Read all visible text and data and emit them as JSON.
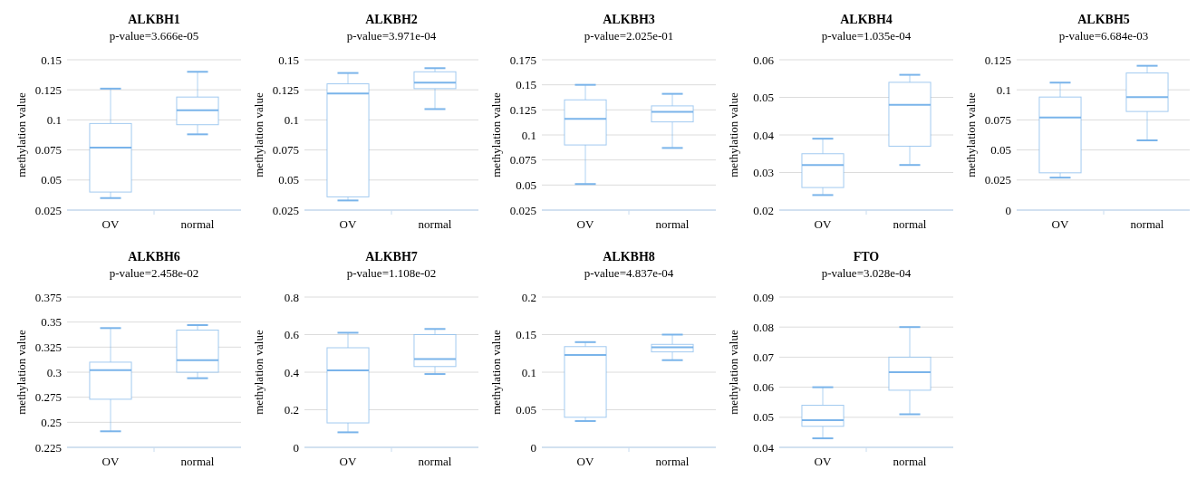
{
  "chart_data": [
    {
      "type": "box",
      "title": "ALKBH1",
      "subtitle": "p-value=3.666e-05",
      "ylabel": "methylation value",
      "categories": [
        "OV",
        "normal"
      ],
      "ylim": [
        0.025,
        0.15
      ],
      "yticks": [
        0.025,
        0.05,
        0.075,
        0.1,
        0.125,
        0.15
      ],
      "grid": "y",
      "series": [
        {
          "color": "#7ab4ea",
          "boxes": [
            {
              "low": 0.035,
              "q1": 0.04,
              "median": 0.077,
              "q3": 0.097,
              "high": 0.126
            },
            {
              "low": 0.088,
              "q1": 0.096,
              "median": 0.108,
              "q3": 0.119,
              "high": 0.14
            }
          ]
        }
      ]
    },
    {
      "type": "box",
      "title": "ALKBH2",
      "subtitle": "p-value=3.971e-04",
      "ylabel": "methylation value",
      "categories": [
        "OV",
        "normal"
      ],
      "ylim": [
        0.025,
        0.15
      ],
      "yticks": [
        0.025,
        0.05,
        0.075,
        0.1,
        0.125,
        0.15
      ],
      "grid": "y",
      "series": [
        {
          "color": "#7ab4ea",
          "boxes": [
            {
              "low": 0.033,
              "q1": 0.036,
              "median": 0.122,
              "q3": 0.13,
              "high": 0.139
            },
            {
              "low": 0.109,
              "q1": 0.126,
              "median": 0.131,
              "q3": 0.14,
              "high": 0.143
            }
          ]
        }
      ]
    },
    {
      "type": "box",
      "title": "ALKBH3",
      "subtitle": "p-value=2.025e-01",
      "ylabel": "methylation value",
      "categories": [
        "OV",
        "normal"
      ],
      "ylim": [
        0.025,
        0.175
      ],
      "yticks": [
        0.025,
        0.05,
        0.075,
        0.1,
        0.125,
        0.15,
        0.175
      ],
      "grid": "y",
      "series": [
        {
          "color": "#7ab4ea",
          "boxes": [
            {
              "low": 0.051,
              "q1": 0.09,
              "median": 0.116,
              "q3": 0.135,
              "high": 0.15
            },
            {
              "low": 0.087,
              "q1": 0.113,
              "median": 0.123,
              "q3": 0.129,
              "high": 0.141
            }
          ]
        }
      ]
    },
    {
      "type": "box",
      "title": "ALKBH4",
      "subtitle": "p-value=1.035e-04",
      "ylabel": "methylation value",
      "categories": [
        "OV",
        "normal"
      ],
      "ylim": [
        0.02,
        0.06
      ],
      "yticks": [
        0.02,
        0.03,
        0.04,
        0.05,
        0.06
      ],
      "grid": "y",
      "series": [
        {
          "color": "#7ab4ea",
          "boxes": [
            {
              "low": 0.024,
              "q1": 0.026,
              "median": 0.032,
              "q3": 0.035,
              "high": 0.039
            },
            {
              "low": 0.032,
              "q1": 0.037,
              "median": 0.048,
              "q3": 0.054,
              "high": 0.056
            }
          ]
        }
      ]
    },
    {
      "type": "box",
      "title": "ALKBH5",
      "subtitle": "p-value=6.684e-03",
      "ylabel": "methylation value",
      "categories": [
        "OV",
        "normal"
      ],
      "ylim": [
        0,
        0.125
      ],
      "yticks": [
        0,
        0.025,
        0.05,
        0.075,
        0.1,
        0.125
      ],
      "grid": "y",
      "series": [
        {
          "color": "#7ab4ea",
          "boxes": [
            {
              "low": 0.027,
              "q1": 0.031,
              "median": 0.077,
              "q3": 0.094,
              "high": 0.106
            },
            {
              "low": 0.058,
              "q1": 0.082,
              "median": 0.094,
              "q3": 0.114,
              "high": 0.12
            }
          ]
        }
      ]
    },
    {
      "type": "box",
      "title": "ALKBH6",
      "subtitle": "p-value=2.458e-02",
      "ylabel": "methylation value",
      "categories": [
        "OV",
        "normal"
      ],
      "ylim": [
        0.225,
        0.375
      ],
      "yticks": [
        0.225,
        0.25,
        0.275,
        0.3,
        0.325,
        0.35,
        0.375
      ],
      "grid": "y",
      "series": [
        {
          "color": "#7ab4ea",
          "boxes": [
            {
              "low": 0.241,
              "q1": 0.273,
              "median": 0.302,
              "q3": 0.31,
              "high": 0.344
            },
            {
              "low": 0.294,
              "q1": 0.3,
              "median": 0.312,
              "q3": 0.342,
              "high": 0.347
            }
          ]
        }
      ]
    },
    {
      "type": "box",
      "title": "ALKBH7",
      "subtitle": "p-value=1.108e-02",
      "ylabel": "methylation value",
      "categories": [
        "OV",
        "normal"
      ],
      "ylim": [
        0,
        0.8
      ],
      "yticks": [
        0,
        0.2,
        0.4,
        0.6,
        0.8
      ],
      "grid": "y",
      "series": [
        {
          "color": "#7ab4ea",
          "boxes": [
            {
              "low": 0.08,
              "q1": 0.13,
              "median": 0.41,
              "q3": 0.53,
              "high": 0.61
            },
            {
              "low": 0.39,
              "q1": 0.43,
              "median": 0.47,
              "q3": 0.6,
              "high": 0.63
            }
          ]
        }
      ]
    },
    {
      "type": "box",
      "title": "ALKBH8",
      "subtitle": "p-value=4.837e-04",
      "ylabel": "methylation value",
      "categories": [
        "OV",
        "normal"
      ],
      "ylim": [
        0,
        0.2
      ],
      "yticks": [
        0,
        0.05,
        0.1,
        0.15,
        0.2
      ],
      "grid": "y",
      "series": [
        {
          "color": "#7ab4ea",
          "boxes": [
            {
              "low": 0.035,
              "q1": 0.04,
              "median": 0.123,
              "q3": 0.134,
              "high": 0.14
            },
            {
              "low": 0.116,
              "q1": 0.127,
              "median": 0.133,
              "q3": 0.137,
              "high": 0.15
            }
          ]
        }
      ]
    },
    {
      "type": "box",
      "title": "FTO",
      "subtitle": "p-value=3.028e-04",
      "ylabel": "methylation value",
      "categories": [
        "OV",
        "normal"
      ],
      "ylim": [
        0.04,
        0.09
      ],
      "yticks": [
        0.04,
        0.05,
        0.06,
        0.07,
        0.08,
        0.09
      ],
      "grid": "y",
      "series": [
        {
          "color": "#7ab4ea",
          "boxes": [
            {
              "low": 0.043,
              "q1": 0.047,
              "median": 0.049,
              "q3": 0.054,
              "high": 0.06
            },
            {
              "low": 0.051,
              "q1": 0.059,
              "median": 0.065,
              "q3": 0.07,
              "high": 0.08
            }
          ]
        }
      ]
    }
  ]
}
